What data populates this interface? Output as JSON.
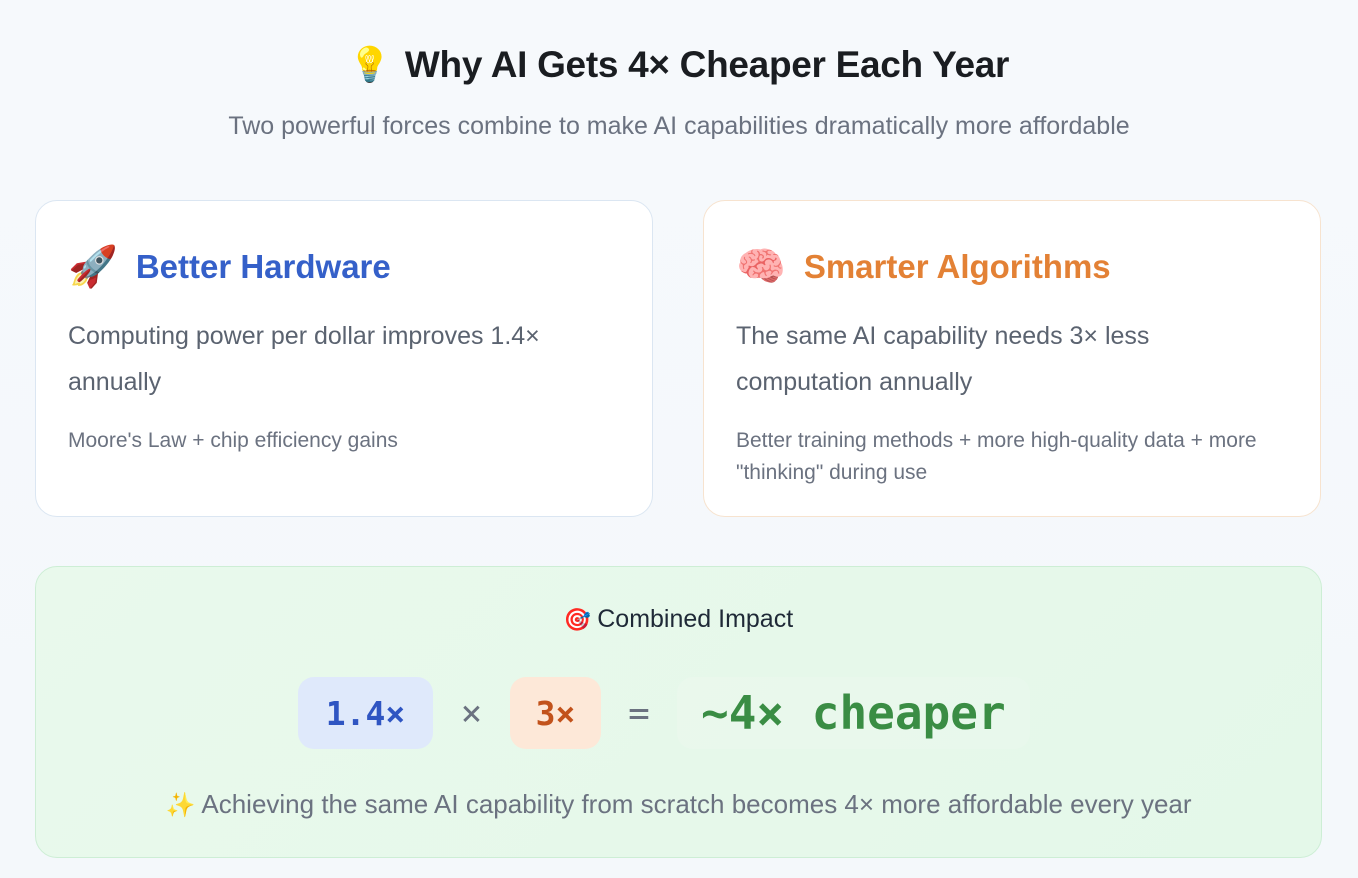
{
  "header": {
    "icon": "💡",
    "title": "Why AI Gets 4× Cheaper Each Year",
    "subtitle": "Two powerful forces combine to make AI capabilities dramatically more affordable"
  },
  "cards": {
    "hardware": {
      "icon": "🚀",
      "title": "Better Hardware",
      "body": "Computing power per dollar improves 1.4× annually",
      "note": "Moore's Law + chip efficiency gains",
      "accent": "#3560c9"
    },
    "algorithms": {
      "icon": "🧠",
      "title": "Smarter Algorithms",
      "body": "The same AI capability needs 3× less computation annually",
      "note": "Better training methods + more high-quality data + more \"thinking\" during use",
      "accent": "#e38135"
    }
  },
  "combined": {
    "icon": "🎯",
    "title": "Combined Impact",
    "hardware_factor": "1.4×",
    "times_symbol": "×",
    "algorithm_factor": "3×",
    "equals_symbol": "=",
    "result": "~4× cheaper",
    "result_color": "#3a8d44",
    "footer_icon": "✨",
    "footer": "Achieving the same AI capability from scratch becomes 4× more affordable every year"
  }
}
